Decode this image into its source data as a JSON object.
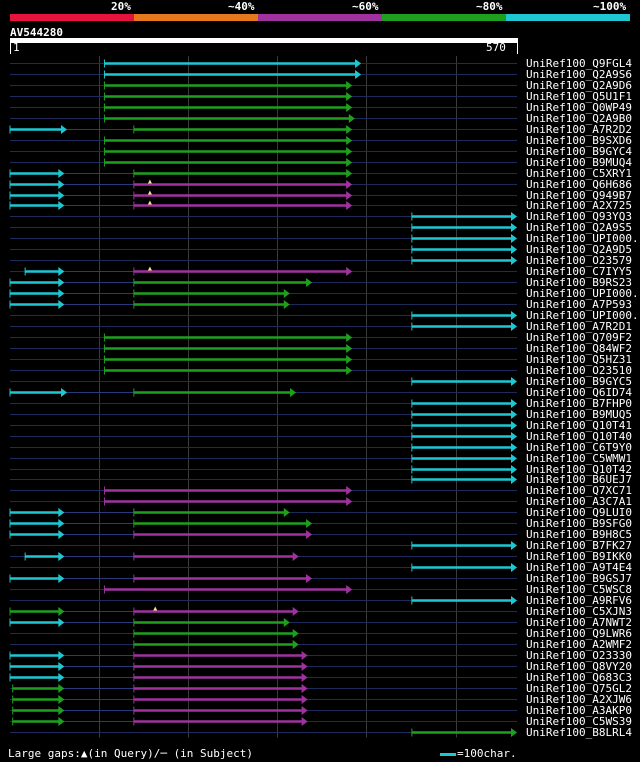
{
  "legend": {
    "labels": [
      "20%",
      "~40%",
      "~60%",
      "~80%",
      "~100%"
    ],
    "colors": [
      "#e6143c",
      "#e6781e",
      "#a032a0",
      "#1ea01e",
      "#1ec8d2"
    ]
  },
  "query": {
    "name": "AV544280",
    "start": "1",
    "end": "570",
    "length": 570
  },
  "color_map": {
    "cyan": "#1ec8d2",
    "green": "#1ea01e",
    "magenta": "#a032a0"
  },
  "hits": [
    {
      "name": "UniRef100_Q9FGL4",
      "segs": [
        [
          107,
          395,
          "cyan"
        ]
      ],
      "gaps": []
    },
    {
      "name": "UniRef100_Q2A9S6",
      "segs": [
        [
          107,
          395,
          "cyan"
        ]
      ],
      "gaps": []
    },
    {
      "name": "UniRef100_Q2A9D6",
      "segs": [
        [
          107,
          385,
          "green"
        ]
      ],
      "gaps": []
    },
    {
      "name": "UniRef100_Q5U1F1",
      "segs": [
        [
          107,
          385,
          "green"
        ]
      ],
      "gaps": []
    },
    {
      "name": "UniRef100_Q0WP49",
      "segs": [
        [
          107,
          385,
          "green"
        ]
      ],
      "gaps": []
    },
    {
      "name": "UniRef100_Q2A9B0",
      "segs": [
        [
          107,
          388,
          "green"
        ]
      ],
      "gaps": []
    },
    {
      "name": "UniRef100_A7R2D2",
      "segs": [
        [
          1,
          65,
          "cyan"
        ],
        [
          140,
          385,
          "green"
        ]
      ],
      "gaps": []
    },
    {
      "name": "UniRef100_B9SXD6",
      "segs": [
        [
          107,
          385,
          "green"
        ]
      ],
      "gaps": []
    },
    {
      "name": "UniRef100_B9GYC4",
      "segs": [
        [
          107,
          385,
          "green"
        ]
      ],
      "gaps": []
    },
    {
      "name": "UniRef100_B9MUQ4",
      "segs": [
        [
          107,
          385,
          "green"
        ]
      ],
      "gaps": []
    },
    {
      "name": "UniRef100_C5XRY1",
      "segs": [
        [
          1,
          62,
          "cyan"
        ],
        [
          140,
          385,
          "green"
        ]
      ],
      "gaps": []
    },
    {
      "name": "UniRef100_Q6H686",
      "segs": [
        [
          1,
          62,
          "cyan"
        ],
        [
          140,
          385,
          "magenta"
        ]
      ],
      "gaps": [
        158
      ]
    },
    {
      "name": "UniRef100_Q949B7",
      "segs": [
        [
          1,
          62,
          "cyan"
        ],
        [
          140,
          385,
          "magenta"
        ]
      ],
      "gaps": [
        158
      ]
    },
    {
      "name": "UniRef100_A2X725",
      "segs": [
        [
          1,
          62,
          "cyan"
        ],
        [
          140,
          385,
          "magenta"
        ]
      ],
      "gaps": [
        158
      ]
    },
    {
      "name": "UniRef100_Q93YQ3",
      "segs": [
        [
          452,
          570,
          "cyan"
        ]
      ],
      "gaps": []
    },
    {
      "name": "UniRef100_Q2A9S5",
      "segs": [
        [
          452,
          570,
          "cyan"
        ]
      ],
      "gaps": []
    },
    {
      "name": "UniRef100_UPI000..",
      "segs": [
        [
          452,
          570,
          "cyan"
        ]
      ],
      "gaps": []
    },
    {
      "name": "UniRef100_Q2A9D5",
      "segs": [
        [
          452,
          570,
          "cyan"
        ]
      ],
      "gaps": []
    },
    {
      "name": "UniRef100_O23579",
      "segs": [
        [
          452,
          570,
          "cyan"
        ]
      ],
      "gaps": []
    },
    {
      "name": "UniRef100_C7IYY5",
      "segs": [
        [
          18,
          62,
          "cyan"
        ],
        [
          140,
          385,
          "magenta"
        ]
      ],
      "gaps": [
        158
      ]
    },
    {
      "name": "UniRef100_B9RS23",
      "segs": [
        [
          1,
          62,
          "cyan"
        ],
        [
          140,
          340,
          "green"
        ]
      ],
      "gaps": []
    },
    {
      "name": "UniRef100_UPI000..",
      "segs": [
        [
          1,
          62,
          "cyan"
        ],
        [
          140,
          315,
          "green"
        ]
      ],
      "gaps": []
    },
    {
      "name": "UniRef100_A7P593",
      "segs": [
        [
          1,
          62,
          "cyan"
        ],
        [
          140,
          315,
          "green"
        ]
      ],
      "gaps": []
    },
    {
      "name": "UniRef100_UPI000..",
      "segs": [
        [
          452,
          570,
          "cyan"
        ]
      ],
      "gaps": []
    },
    {
      "name": "UniRef100_A7R2D1",
      "segs": [
        [
          452,
          570,
          "cyan"
        ]
      ],
      "gaps": []
    },
    {
      "name": "UniRef100_Q709F2",
      "segs": [
        [
          107,
          385,
          "green"
        ]
      ],
      "gaps": []
    },
    {
      "name": "UniRef100_Q84WF2",
      "segs": [
        [
          107,
          385,
          "green"
        ]
      ],
      "gaps": []
    },
    {
      "name": "UniRef100_Q5HZ31",
      "segs": [
        [
          107,
          385,
          "green"
        ]
      ],
      "gaps": []
    },
    {
      "name": "UniRef100_O23510",
      "segs": [
        [
          107,
          385,
          "green"
        ]
      ],
      "gaps": []
    },
    {
      "name": "UniRef100_B9GYC5",
      "segs": [
        [
          452,
          570,
          "cyan"
        ]
      ],
      "gaps": []
    },
    {
      "name": "UniRef100_Q6ID74",
      "segs": [
        [
          1,
          65,
          "cyan"
        ],
        [
          140,
          322,
          "green"
        ]
      ],
      "gaps": []
    },
    {
      "name": "UniRef100_B7FHP0",
      "segs": [
        [
          452,
          570,
          "cyan"
        ]
      ],
      "gaps": []
    },
    {
      "name": "UniRef100_B9MUQ5",
      "segs": [
        [
          452,
          570,
          "cyan"
        ]
      ],
      "gaps": []
    },
    {
      "name": "UniRef100_Q10T41",
      "segs": [
        [
          452,
          570,
          "cyan"
        ]
      ],
      "gaps": []
    },
    {
      "name": "UniRef100_Q10T40",
      "segs": [
        [
          452,
          570,
          "cyan"
        ]
      ],
      "gaps": []
    },
    {
      "name": "UniRef100_C6T9Y0",
      "segs": [
        [
          452,
          570,
          "cyan"
        ]
      ],
      "gaps": []
    },
    {
      "name": "UniRef100_C5WMW1",
      "segs": [
        [
          452,
          570,
          "cyan"
        ]
      ],
      "gaps": []
    },
    {
      "name": "UniRef100_Q10T42",
      "segs": [
        [
          452,
          570,
          "cyan"
        ]
      ],
      "gaps": []
    },
    {
      "name": "UniRef100_B6UEJ7",
      "segs": [
        [
          452,
          570,
          "cyan"
        ]
      ],
      "gaps": []
    },
    {
      "name": "UniRef100_Q7XC71",
      "segs": [
        [
          107,
          385,
          "magenta"
        ]
      ],
      "gaps": []
    },
    {
      "name": "UniRef100_A3C7A1",
      "segs": [
        [
          107,
          385,
          "magenta"
        ]
      ],
      "gaps": []
    },
    {
      "name": "UniRef100_Q9LUI0",
      "segs": [
        [
          1,
          62,
          "cyan"
        ],
        [
          140,
          315,
          "green"
        ]
      ],
      "gaps": []
    },
    {
      "name": "UniRef100_B9SFG0",
      "segs": [
        [
          1,
          62,
          "cyan"
        ],
        [
          140,
          340,
          "green"
        ]
      ],
      "gaps": []
    },
    {
      "name": "UniRef100_B9H8C5",
      "segs": [
        [
          1,
          62,
          "cyan"
        ],
        [
          140,
          340,
          "magenta"
        ]
      ],
      "gaps": []
    },
    {
      "name": "UniRef100_B7FK27",
      "segs": [
        [
          452,
          570,
          "cyan"
        ]
      ],
      "gaps": []
    },
    {
      "name": "UniRef100_B9IKK0",
      "segs": [
        [
          18,
          62,
          "cyan"
        ],
        [
          140,
          325,
          "magenta"
        ]
      ],
      "gaps": []
    },
    {
      "name": "UniRef100_A9T4E4",
      "segs": [
        [
          452,
          570,
          "cyan"
        ]
      ],
      "gaps": []
    },
    {
      "name": "UniRef100_B9GSJ7",
      "segs": [
        [
          1,
          62,
          "cyan"
        ],
        [
          140,
          340,
          "magenta"
        ]
      ],
      "gaps": []
    },
    {
      "name": "UniRef100_C5WSC8",
      "segs": [
        [
          107,
          385,
          "magenta"
        ]
      ],
      "gaps": []
    },
    {
      "name": "UniRef100_A9RFV6",
      "segs": [
        [
          452,
          570,
          "cyan"
        ]
      ],
      "gaps": []
    },
    {
      "name": "UniRef100_C5XJN3",
      "segs": [
        [
          1,
          62,
          "green"
        ],
        [
          140,
          325,
          "magenta"
        ]
      ],
      "gaps": [
        164
      ]
    },
    {
      "name": "UniRef100_A7NWT2",
      "segs": [
        [
          1,
          62,
          "cyan"
        ],
        [
          140,
          315,
          "green"
        ]
      ],
      "gaps": []
    },
    {
      "name": "UniRef100_Q9LWR6",
      "segs": [
        [
          140,
          325,
          "green"
        ]
      ],
      "gaps": []
    },
    {
      "name": "UniRef100_A2WMF2",
      "segs": [
        [
          140,
          325,
          "green"
        ]
      ],
      "gaps": []
    },
    {
      "name": "UniRef100_O23330",
      "segs": [
        [
          1,
          62,
          "cyan"
        ],
        [
          140,
          335,
          "magenta"
        ]
      ],
      "gaps": []
    },
    {
      "name": "UniRef100_Q8VY20",
      "segs": [
        [
          1,
          62,
          "cyan"
        ],
        [
          140,
          335,
          "magenta"
        ]
      ],
      "gaps": []
    },
    {
      "name": "UniRef100_Q683C3",
      "segs": [
        [
          1,
          62,
          "cyan"
        ],
        [
          140,
          335,
          "magenta"
        ]
      ],
      "gaps": []
    },
    {
      "name": "UniRef100_Q75GL2",
      "segs": [
        [
          4,
          62,
          "green"
        ],
        [
          140,
          335,
          "magenta"
        ]
      ],
      "gaps": []
    },
    {
      "name": "UniRef100_A2XJW6",
      "segs": [
        [
          4,
          62,
          "green"
        ],
        [
          140,
          335,
          "magenta"
        ]
      ],
      "gaps": []
    },
    {
      "name": "UniRef100_A3AKP0",
      "segs": [
        [
          4,
          62,
          "green"
        ],
        [
          140,
          335,
          "magenta"
        ]
      ],
      "gaps": []
    },
    {
      "name": "UniRef100_C5WS39",
      "segs": [
        [
          4,
          62,
          "green"
        ],
        [
          140,
          335,
          "magenta"
        ]
      ],
      "gaps": []
    },
    {
      "name": "UniRef100_B8LRL4",
      "segs": [
        [
          452,
          570,
          "green"
        ]
      ],
      "gaps": []
    }
  ],
  "footer": {
    "gaps_legend": "Large gaps:▲(in Query)/─ (in Subject)",
    "scale_label": "=100char."
  }
}
